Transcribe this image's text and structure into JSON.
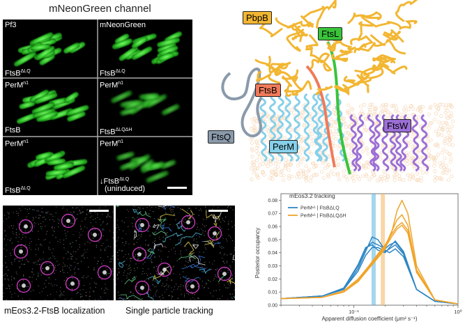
{
  "figure": {
    "panel_a": {
      "title": "mNeonGreen channel",
      "tiles": [
        {
          "top": "Pf3",
          "bottom": "FtsB",
          "bottom_sup": "ΔLQ"
        },
        {
          "top": "mNeonGreen",
          "bottom": "FtsB",
          "bottom_sup": "ΔLQ"
        },
        {
          "top": "PerM",
          "top_sup": "n1",
          "bottom": "FtsB",
          "bottom_sup": ""
        },
        {
          "top": "PerM",
          "top_sup": "n1",
          "bottom": "FtsB",
          "bottom_sup": "ΔLQΔH"
        },
        {
          "top": "PerM",
          "top_sup": "n1",
          "bottom": "FtsB",
          "bottom_sup": "ΔLQ"
        },
        {
          "top": "PerM",
          "top_sup": "n1",
          "bottom": "↓FtsB",
          "bottom_sup": "ΔLQ",
          "bottom_extra": "(uninduced)"
        }
      ]
    },
    "panel_b": {
      "labels": {
        "pbpb": "PbpB",
        "ftsl": "FtsL",
        "ftsb": "FtsB",
        "ftsq": "FtsQ",
        "perm": "PerM",
        "ftsw": "FtsW"
      },
      "colors": {
        "pbpb": "#f2b632",
        "ftsl": "#39c43a",
        "ftsb": "#f07a5a",
        "ftsq": "#8a9aab",
        "perm": "#86d0ea",
        "ftsw": "#9b6fd6",
        "membrane": "#f7dcc0"
      }
    },
    "panel_c": {
      "left_caption": "mEos3.2-FtsB localization",
      "right_caption": "Single particle tracking"
    },
    "chart_data": {
      "type": "line",
      "title": "mEos3.2 tracking",
      "xlabel": "Apparent diffusion coefficient (μm² s⁻¹)",
      "ylabel": "Posterior occupancy",
      "xscale": "log",
      "xlim": [
        0.02,
        1
      ],
      "ylim": [
        0,
        0.085
      ],
      "x_ticks": [
        "10⁻¹",
        "10⁰"
      ],
      "y_ticks": [
        "0.00",
        "0.01",
        "0.02",
        "0.03",
        "0.04",
        "0.05",
        "0.06",
        "0.07",
        "0.08"
      ],
      "legend_position": "top-left",
      "series": [
        {
          "name": "PerMⁿ¹ | FtsBΔLQ",
          "color": "#2f86c4",
          "replicates": [
            {
              "x": [
                0.02,
                0.05,
                0.08,
                0.11,
                0.13,
                0.15,
                0.17,
                0.2,
                0.22,
                0.25,
                0.3,
                0.4,
                0.6,
                1
              ],
              "y": [
                0.005,
                0.007,
                0.013,
                0.03,
                0.043,
                0.048,
                0.046,
                0.043,
                0.046,
                0.048,
                0.04,
                0.012,
                0.003,
                0.001
              ]
            },
            {
              "x": [
                0.02,
                0.05,
                0.08,
                0.11,
                0.13,
                0.15,
                0.17,
                0.2,
                0.22,
                0.25,
                0.3,
                0.4,
                0.6,
                1
              ],
              "y": [
                0.005,
                0.007,
                0.012,
                0.028,
                0.041,
                0.052,
                0.05,
                0.042,
                0.04,
                0.043,
                0.037,
                0.012,
                0.003,
                0.001
              ]
            },
            {
              "x": [
                0.02,
                0.05,
                0.08,
                0.11,
                0.13,
                0.15,
                0.17,
                0.2,
                0.22,
                0.25,
                0.3,
                0.4,
                0.6,
                1
              ],
              "y": [
                0.005,
                0.007,
                0.013,
                0.031,
                0.044,
                0.046,
                0.042,
                0.04,
                0.044,
                0.049,
                0.041,
                0.012,
                0.003,
                0.001
              ]
            },
            {
              "x": [
                0.02,
                0.05,
                0.08,
                0.11,
                0.13,
                0.15,
                0.17,
                0.2,
                0.22,
                0.25,
                0.3,
                0.4,
                0.6,
                1
              ],
              "y": [
                0.005,
                0.007,
                0.012,
                0.026,
                0.038,
                0.044,
                0.044,
                0.041,
                0.043,
                0.046,
                0.039,
                0.012,
                0.003,
                0.001
              ]
            }
          ]
        },
        {
          "name": "PerMⁿ¹ | FtsBΔLQΔH",
          "color": "#f0a42a",
          "replicates": [
            {
              "x": [
                0.02,
                0.05,
                0.08,
                0.11,
                0.14,
                0.17,
                0.2,
                0.23,
                0.26,
                0.29,
                0.33,
                0.4,
                0.6,
                1
              ],
              "y": [
                0.005,
                0.006,
                0.01,
                0.018,
                0.028,
                0.036,
                0.043,
                0.055,
                0.072,
                0.08,
                0.07,
                0.03,
                0.004,
                0.001
              ]
            },
            {
              "x": [
                0.02,
                0.05,
                0.08,
                0.11,
                0.14,
                0.17,
                0.2,
                0.23,
                0.26,
                0.29,
                0.33,
                0.4,
                0.6,
                1
              ],
              "y": [
                0.005,
                0.006,
                0.01,
                0.019,
                0.03,
                0.038,
                0.045,
                0.056,
                0.065,
                0.069,
                0.061,
                0.027,
                0.004,
                0.001
              ]
            },
            {
              "x": [
                0.02,
                0.05,
                0.08,
                0.11,
                0.14,
                0.17,
                0.2,
                0.23,
                0.26,
                0.29,
                0.33,
                0.4,
                0.6,
                1
              ],
              "y": [
                0.005,
                0.006,
                0.011,
                0.02,
                0.03,
                0.039,
                0.046,
                0.054,
                0.06,
                0.063,
                0.057,
                0.026,
                0.004,
                0.001
              ]
            },
            {
              "x": [
                0.02,
                0.05,
                0.08,
                0.11,
                0.14,
                0.17,
                0.2,
                0.23,
                0.26,
                0.29,
                0.33,
                0.4,
                0.6,
                1
              ],
              "y": [
                0.005,
                0.006,
                0.01,
                0.018,
                0.029,
                0.037,
                0.044,
                0.052,
                0.058,
                0.061,
                0.055,
                0.025,
                0.004,
                0.001
              ]
            }
          ]
        }
      ],
      "mean_bands": [
        {
          "x": 0.155,
          "color": "#5ab4e0"
        },
        {
          "x": 0.19,
          "color": "#f3b460"
        }
      ]
    }
  }
}
